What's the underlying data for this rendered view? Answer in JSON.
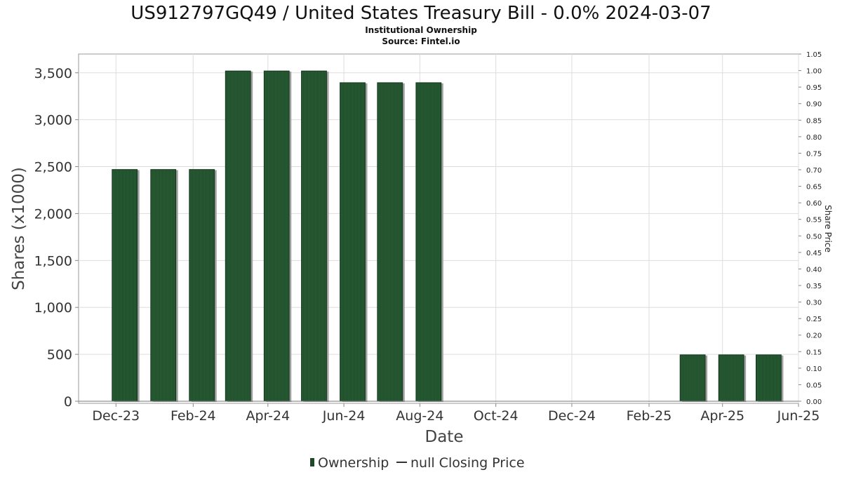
{
  "chart_data": {
    "type": "bar",
    "title": "US912797GQ49 / United States Treasury Bill - 0.0% 2024-03-07",
    "subtitle": "Institutional Ownership",
    "source": "Source: Fintel.io",
    "xlabel": "Date",
    "ylabel": "Shares (x1000)",
    "y2label": "Share Price",
    "ylim": [
      0,
      3700
    ],
    "y2lim": [
      0,
      1.05
    ],
    "xlim": [
      "2023-11-01",
      "2025-06-01"
    ],
    "yticks": [
      0,
      500,
      1000,
      1500,
      2000,
      2500,
      3000,
      3500
    ],
    "yticklabels": [
      "0",
      "500",
      "1,000",
      "1,500",
      "2,000",
      "2,500",
      "3,000",
      "3,500"
    ],
    "y2ticks": [
      0.0,
      0.05,
      0.1,
      0.15,
      0.2,
      0.25,
      0.3,
      0.35,
      0.4,
      0.45,
      0.5,
      0.55,
      0.6,
      0.65,
      0.7,
      0.75,
      0.8,
      0.85,
      0.9,
      0.95,
      1.0,
      1.05
    ],
    "y2ticklabels": [
      "0.00",
      "0.05",
      "0.10",
      "0.15",
      "0.20",
      "0.25",
      "0.30",
      "0.35",
      "0.40",
      "0.45",
      "0.50",
      "0.55",
      "0.60",
      "0.65",
      "0.70",
      "0.75",
      "0.80",
      "0.85",
      "0.90",
      "0.95",
      "1.00",
      "1.05"
    ],
    "xticks": [
      "2023-12-01",
      "2024-02-01",
      "2024-04-01",
      "2024-06-01",
      "2024-08-01",
      "2024-10-01",
      "2024-12-01",
      "2025-02-01",
      "2025-04-01",
      "2025-06-01"
    ],
    "xticklabels": [
      "Dec-23",
      "Feb-24",
      "Apr-24",
      "Jun-24",
      "Aug-24",
      "Oct-24",
      "Dec-24",
      "Feb-25",
      "Apr-25",
      "Jun-25"
    ],
    "grid": true,
    "legend_position": "bottom",
    "series": [
      {
        "name": "Ownership",
        "color": "#1f4a2a",
        "x": [
          "2023-12-08",
          "2024-01-08",
          "2024-02-08",
          "2024-03-08",
          "2024-04-08",
          "2024-05-08",
          "2024-06-08",
          "2024-07-08",
          "2024-08-08",
          "2025-03-08",
          "2025-04-08",
          "2025-05-08"
        ],
        "values": [
          2470,
          2470,
          2470,
          3520,
          3520,
          3520,
          3395,
          3395,
          3395,
          495,
          495,
          495
        ]
      }
    ],
    "legend": [
      {
        "label": "Ownership",
        "kind": "bar",
        "color": "#1f4a2a"
      },
      {
        "label": "null Closing Price",
        "kind": "line",
        "color": "#333333"
      }
    ]
  }
}
